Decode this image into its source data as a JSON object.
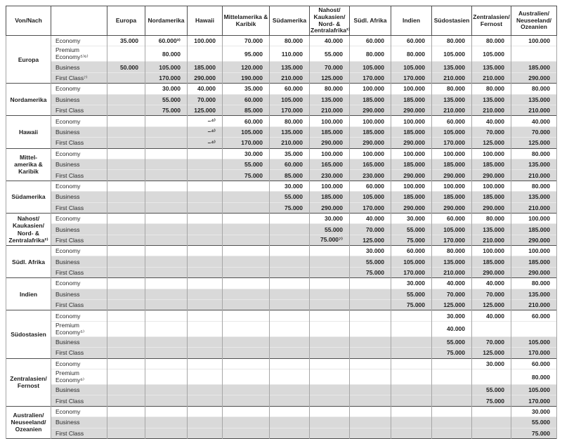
{
  "colors": {
    "row_shade": "#d9d9d9",
    "border_dark": "#4f4f4f",
    "border_light": "#a6a6a6",
    "text": "#1d1d1d",
    "background": "#ffffff"
  },
  "table": {
    "corner_header": "Von/Nach",
    "class_column_header": "",
    "columns": [
      "Europa",
      "Nordamerika",
      "Hawaii",
      "Mittelamerika &\nKaribik",
      "Südamerika",
      "Nahost/\nKaukasien/\nNord- &\nZentralafrika²⁾",
      "Südl. Afrika",
      "Indien",
      "Südostasien",
      "Zentralasien/\nFernost",
      "Australien/\nNeuseeland/\nOzeanien"
    ],
    "groups": [
      {
        "region": "Europa",
        "rows": [
          {
            "class": "Economy",
            "shaded": false,
            "values": [
              "35.000",
              "60.000³⁾",
              "100.000",
              "70.000",
              "80.000",
              "40.000",
              "60.000",
              "60.000",
              "80.000",
              "80.000",
              "100.000"
            ]
          },
          {
            "class": "Premium Economy⁵⁾⁶⁾",
            "shaded": false,
            "values": [
              "",
              "80.000",
              "",
              "95.000",
              "110.000",
              "55.000",
              "80.000",
              "80.000",
              "105.000",
              "105.000",
              ""
            ]
          },
          {
            "class": "Business",
            "shaded": true,
            "values": [
              "50.000",
              "105.000",
              "185.000",
              "120.000",
              "135.000",
              "70.000",
              "105.000",
              "105.000",
              "135.000",
              "135.000",
              "185.000"
            ]
          },
          {
            "class": "First Class⁷⁾",
            "shaded": true,
            "values": [
              "",
              "170.000",
              "290.000",
              "190.000",
              "210.000",
              "125.000",
              "170.000",
              "170.000",
              "210.000",
              "210.000",
              "290.000"
            ]
          }
        ]
      },
      {
        "region": "Nordamerika",
        "rows": [
          {
            "class": "Economy",
            "shaded": false,
            "values": [
              "",
              "30.000",
              "40.000",
              "35.000",
              "60.000",
              "80.000",
              "100.000",
              "100.000",
              "80.000",
              "80.000",
              "80.000"
            ]
          },
          {
            "class": "Business",
            "shaded": true,
            "values": [
              "",
              "55.000",
              "70.000",
              "60.000",
              "105.000",
              "135.000",
              "185.000",
              "185.000",
              "135.000",
              "135.000",
              "135.000"
            ]
          },
          {
            "class": "First Class",
            "shaded": true,
            "values": [
              "",
              "75.000",
              "125.000",
              "85.000",
              "170.000",
              "210.000",
              "290.000",
              "290.000",
              "210.000",
              "210.000",
              "210.000"
            ]
          }
        ]
      },
      {
        "region": "Hawaii",
        "rows": [
          {
            "class": "Economy",
            "shaded": false,
            "values": [
              "",
              "",
              "–⁴⁾",
              "60.000",
              "80.000",
              "100.000",
              "100.000",
              "100.000",
              "60.000",
              "40.000",
              "40.000"
            ]
          },
          {
            "class": "Business",
            "shaded": true,
            "values": [
              "",
              "",
              "–⁴⁾",
              "105.000",
              "135.000",
              "185.000",
              "185.000",
              "185.000",
              "105.000",
              "70.000",
              "70.000"
            ]
          },
          {
            "class": "First Class",
            "shaded": true,
            "values": [
              "",
              "",
              "–⁴⁾",
              "170.000",
              "210.000",
              "290.000",
              "290.000",
              "290.000",
              "170.000",
              "125.000",
              "125.000"
            ]
          }
        ]
      },
      {
        "region": "Mittel-\namerika &\nKaribik",
        "rows": [
          {
            "class": "Economy",
            "shaded": false,
            "values": [
              "",
              "",
              "",
              "30.000",
              "35.000",
              "100.000",
              "100.000",
              "100.000",
              "100.000",
              "100.000",
              "80.000"
            ]
          },
          {
            "class": "Business",
            "shaded": true,
            "values": [
              "",
              "",
              "",
              "55.000",
              "60.000",
              "165.000",
              "165.000",
              "185.000",
              "185.000",
              "185.000",
              "135.000"
            ]
          },
          {
            "class": "First Class",
            "shaded": true,
            "values": [
              "",
              "",
              "",
              "75.000",
              "85.000",
              "230.000",
              "230.000",
              "290.000",
              "290.000",
              "290.000",
              "210.000"
            ]
          }
        ]
      },
      {
        "region": "Südamerika",
        "rows": [
          {
            "class": "Economy",
            "shaded": false,
            "values": [
              "",
              "",
              "",
              "",
              "30.000",
              "100.000",
              "60.000",
              "100.000",
              "100.000",
              "100.000",
              "80.000"
            ]
          },
          {
            "class": "Business",
            "shaded": true,
            "values": [
              "",
              "",
              "",
              "",
              "55.000",
              "185.000",
              "105.000",
              "185.000",
              "185.000",
              "185.000",
              "135.000"
            ]
          },
          {
            "class": "First Class",
            "shaded": true,
            "values": [
              "",
              "",
              "",
              "",
              "75.000",
              "290.000",
              "170.000",
              "290.000",
              "290.000",
              "290.000",
              "210.000"
            ]
          }
        ]
      },
      {
        "region": "Nahost/\nKaukasien/\nNord- &\nZentralafrika²⁾",
        "rows": [
          {
            "class": "Economy",
            "shaded": false,
            "values": [
              "",
              "",
              "",
              "",
              "",
              "30.000",
              "40.000",
              "30.000",
              "60.000",
              "80.000",
              "100.000"
            ]
          },
          {
            "class": "Business",
            "shaded": true,
            "values": [
              "",
              "",
              "",
              "",
              "",
              "55.000",
              "70.000",
              "55.000",
              "105.000",
              "135.000",
              "185.000"
            ]
          },
          {
            "class": "First Class",
            "shaded": true,
            "values": [
              "",
              "",
              "",
              "",
              "",
              "75.000⁷⁾",
              "125.000",
              "75.000",
              "170.000",
              "210.000",
              "290.000"
            ]
          }
        ]
      },
      {
        "region": "Südl. Afrika",
        "rows": [
          {
            "class": "Economy",
            "shaded": false,
            "values": [
              "",
              "",
              "",
              "",
              "",
              "",
              "30.000",
              "60.000",
              "80.000",
              "100.000",
              "100.000"
            ]
          },
          {
            "class": "Business",
            "shaded": true,
            "values": [
              "",
              "",
              "",
              "",
              "",
              "",
              "55.000",
              "105.000",
              "135.000",
              "185.000",
              "185.000"
            ]
          },
          {
            "class": "First Class",
            "shaded": true,
            "values": [
              "",
              "",
              "",
              "",
              "",
              "",
              "75.000",
              "170.000",
              "210.000",
              "290.000",
              "290.000"
            ]
          }
        ]
      },
      {
        "region": "Indien",
        "rows": [
          {
            "class": "Economy",
            "shaded": false,
            "values": [
              "",
              "",
              "",
              "",
              "",
              "",
              "",
              "30.000",
              "40.000",
              "40.000",
              "80.000"
            ]
          },
          {
            "class": "Business",
            "shaded": true,
            "values": [
              "",
              "",
              "",
              "",
              "",
              "",
              "",
              "55.000",
              "70.000",
              "70.000",
              "135.000"
            ]
          },
          {
            "class": "First Class",
            "shaded": true,
            "values": [
              "",
              "",
              "",
              "",
              "",
              "",
              "",
              "75.000",
              "125.000",
              "125.000",
              "210.000"
            ]
          }
        ]
      },
      {
        "region": "Südostasien",
        "rows": [
          {
            "class": "Economy",
            "shaded": false,
            "values": [
              "",
              "",
              "",
              "",
              "",
              "",
              "",
              "",
              "30.000",
              "40.000",
              "60.000"
            ]
          },
          {
            "class": "Premium Economy⁵⁾",
            "shaded": false,
            "values": [
              "",
              "",
              "",
              "",
              "",
              "",
              "",
              "",
              "40.000",
              "",
              ""
            ]
          },
          {
            "class": "Business",
            "shaded": true,
            "values": [
              "",
              "",
              "",
              "",
              "",
              "",
              "",
              "",
              "55.000",
              "70.000",
              "105.000"
            ]
          },
          {
            "class": "First Class",
            "shaded": true,
            "values": [
              "",
              "",
              "",
              "",
              "",
              "",
              "",
              "",
              "75.000",
              "125.000",
              "170.000"
            ]
          }
        ]
      },
      {
        "region": "Zentralasien/\nFernost",
        "rows": [
          {
            "class": "Economy",
            "shaded": false,
            "values": [
              "",
              "",
              "",
              "",
              "",
              "",
              "",
              "",
              "",
              "30.000",
              "60.000"
            ]
          },
          {
            "class": "Premium Economy⁶⁾",
            "shaded": false,
            "values": [
              "",
              "",
              "",
              "",
              "",
              "",
              "",
              "",
              "",
              "",
              "80.000"
            ]
          },
          {
            "class": "Business",
            "shaded": true,
            "values": [
              "",
              "",
              "",
              "",
              "",
              "",
              "",
              "",
              "",
              "55.000",
              "105.000"
            ]
          },
          {
            "class": "First Class",
            "shaded": true,
            "values": [
              "",
              "",
              "",
              "",
              "",
              "",
              "",
              "",
              "",
              "75.000",
              "170.000"
            ]
          }
        ]
      },
      {
        "region": "Australien/\nNeuseeland/\nOzeanien",
        "rows": [
          {
            "class": "Economy",
            "shaded": false,
            "values": [
              "",
              "",
              "",
              "",
              "",
              "",
              "",
              "",
              "",
              "",
              "30.000"
            ]
          },
          {
            "class": "Business",
            "shaded": true,
            "values": [
              "",
              "",
              "",
              "",
              "",
              "",
              "",
              "",
              "",
              "",
              "55.000"
            ]
          },
          {
            "class": "First Class",
            "shaded": true,
            "values": [
              "",
              "",
              "",
              "",
              "",
              "",
              "",
              "",
              "",
              "",
              "75.000"
            ]
          }
        ]
      }
    ]
  }
}
